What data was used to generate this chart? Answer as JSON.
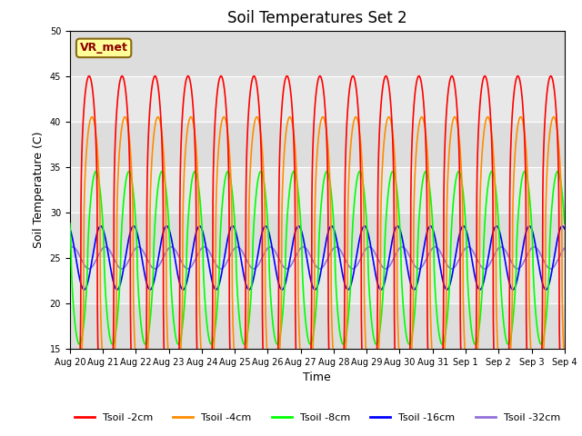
{
  "title": "Soil Temperatures Set 2",
  "xlabel": "Time",
  "ylabel": "Soil Temperature (C)",
  "ylim": [
    15,
    50
  ],
  "yticks": [
    15,
    20,
    25,
    30,
    35,
    40,
    45,
    50
  ],
  "xtick_labels": [
    "Aug 20",
    "Aug 21",
    "Aug 22",
    "Aug 23",
    "Aug 24",
    "Aug 25",
    "Aug 26",
    "Aug 27",
    "Aug 28",
    "Aug 29",
    "Aug 30",
    "Aug 31",
    "Sep 1",
    "Sep 2",
    "Sep 3",
    "Sep 4"
  ],
  "series_colors": [
    "red",
    "darkorange",
    "lime",
    "blue",
    "mediumpurple"
  ],
  "series_labels": [
    "Tsoil -2cm",
    "Tsoil -4cm",
    "Tsoil -8cm",
    "Tsoil -16cm",
    "Tsoil -32cm"
  ],
  "annotation_text": "VR_met",
  "annotation_color": "#8B0000",
  "annotation_bg": "#FFFF99",
  "bg_color": "#E8E8E8",
  "n_days": 15,
  "points_per_day": 288,
  "base_temp": 25.0,
  "amp_2cm": 20.0,
  "amp_4cm": 15.5,
  "amp_8cm": 9.5,
  "amp_16cm": 3.5,
  "amp_32cm": 1.2,
  "phase_2cm": 0.0,
  "phase_4cm": 0.55,
  "phase_8cm": 1.3,
  "phase_16cm": 2.2,
  "phase_32cm": 3.1,
  "sharpness_2cm": 3.0,
  "sharpness_4cm": 2.5,
  "sharpness_8cm": 1.5,
  "sharpness_16cm": 1.0,
  "sharpness_32cm": 1.0,
  "peak_hour": 14.0,
  "figsize": [
    6.4,
    4.8
  ],
  "dpi": 100,
  "title_fontsize": 12,
  "axis_fontsize": 9,
  "tick_fontsize": 7,
  "legend_fontsize": 8,
  "linewidth": 1.2,
  "grid_color": "#CCCCCC",
  "bg_bands": [
    [
      "#E8E8E8",
      "#D8D8D8"
    ]
  ]
}
